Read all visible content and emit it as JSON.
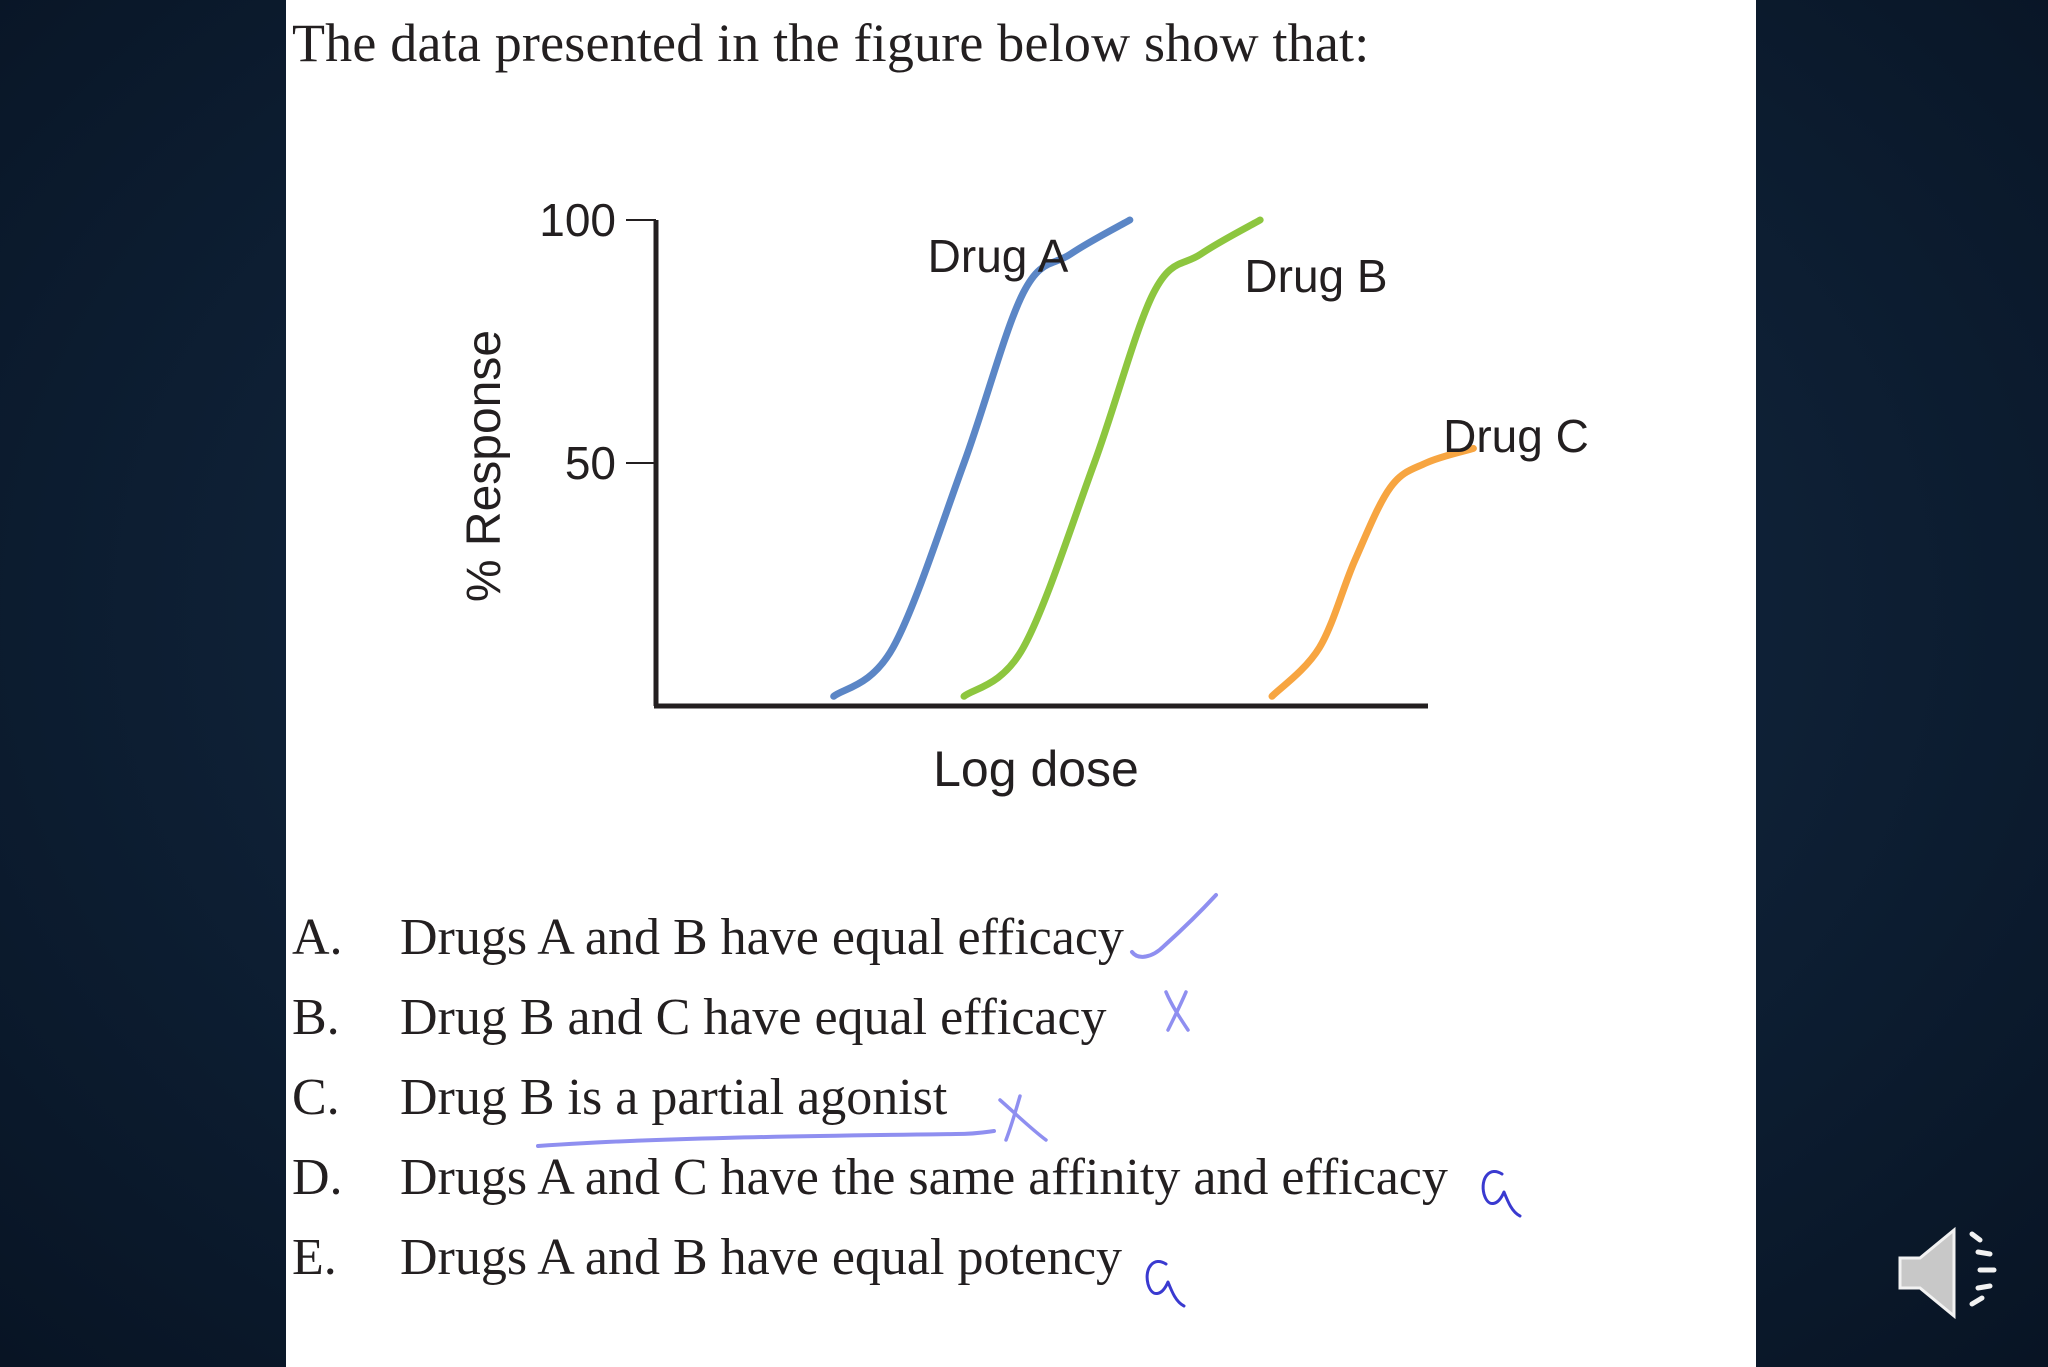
{
  "question": "The data presented in the figure below show that:",
  "chart_data": {
    "type": "line",
    "xlabel": "Log dose",
    "ylabel": "% Response",
    "ylim": [
      0,
      100
    ],
    "yticks": [
      {
        "value": 100,
        "label": "100"
      },
      {
        "value": 50,
        "label": "50"
      }
    ],
    "xticks": [],
    "x_unit": "arbitrary log dose (no tick labels shown)",
    "series": [
      {
        "name": "Drug A",
        "color": "#5b86c6",
        "x": [
          1.5,
          2.0,
          2.6,
          3.1,
          3.5,
          4.0
        ],
        "y": [
          2,
          12,
          50,
          85,
          93,
          100
        ]
      },
      {
        "name": "Drug B",
        "color": "#8dc63f",
        "x": [
          2.6,
          3.1,
          3.7,
          4.2,
          4.6,
          5.1
        ],
        "y": [
          2,
          12,
          50,
          85,
          93,
          100
        ]
      },
      {
        "name": "Drug C",
        "color": "#f7a541",
        "x": [
          5.2,
          5.6,
          5.9,
          6.2,
          6.5,
          6.9
        ],
        "y": [
          2,
          12,
          30,
          45,
          50,
          53
        ]
      }
    ],
    "xlim": [
      0,
      6.5
    ],
    "grid": false
  },
  "options": [
    {
      "letter": "A.",
      "text": "Drugs A and B have equal efficacy"
    },
    {
      "letter": "B.",
      "text": "Drug B and C have equal efficacy"
    },
    {
      "letter": "C.",
      "text": "Drug B is a partial agonist"
    },
    {
      "letter": "D.",
      "text": "Drugs A and C have the same affinity and efficacy"
    },
    {
      "letter": "E.",
      "text": "Drugs A and B have equal potency"
    }
  ],
  "annotations": {
    "ink_color": "#8f8ff0",
    "ink_color_dark": "#3a3ad0",
    "marks": [
      "check",
      "x",
      "x",
      "alpha",
      "alpha"
    ],
    "underline_option": "C"
  },
  "audio_icon": "speaker-icon"
}
